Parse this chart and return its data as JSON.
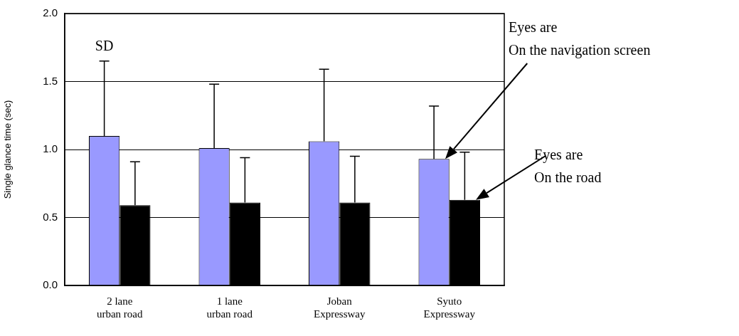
{
  "chart_data": {
    "type": "bar",
    "ylabel": "Single glance time (sec)",
    "categories": [
      "2 lane\nurban road",
      "1 lane\nurban road",
      "Joban\nExpressway",
      "Syuto\nExpressway"
    ],
    "series": [
      {
        "color": "#9999ff",
        "values": [
          1.1,
          1.01,
          1.06,
          0.93
        ],
        "errors": [
          [
            1.1,
            1.65
          ],
          [
            1.01,
            1.48
          ],
          [
            1.06,
            1.59
          ],
          [
            0.93,
            1.32
          ]
        ]
      },
      {
        "color": "#000000",
        "values": [
          0.59,
          0.61,
          0.61,
          0.63
        ],
        "errors": [
          [
            0.59,
            0.91
          ],
          [
            0.61,
            0.94
          ],
          [
            0.61,
            0.95
          ],
          [
            0.63,
            0.98
          ]
        ]
      }
    ],
    "ylim": [
      0,
      2
    ],
    "yticks": [
      {
        "value": 0,
        "label": "0.0"
      },
      {
        "value": 0.5,
        "label": "0.5"
      },
      {
        "value": 1,
        "label": "1.0"
      },
      {
        "value": 1.5,
        "label": "1.5"
      },
      {
        "value": 2,
        "label": "2.0"
      }
    ],
    "grid": "y",
    "legend": false,
    "annotations": [
      "SD",
      "Eyes are\nOn the navigation screen",
      "Eyes are\nOn the road"
    ]
  }
}
